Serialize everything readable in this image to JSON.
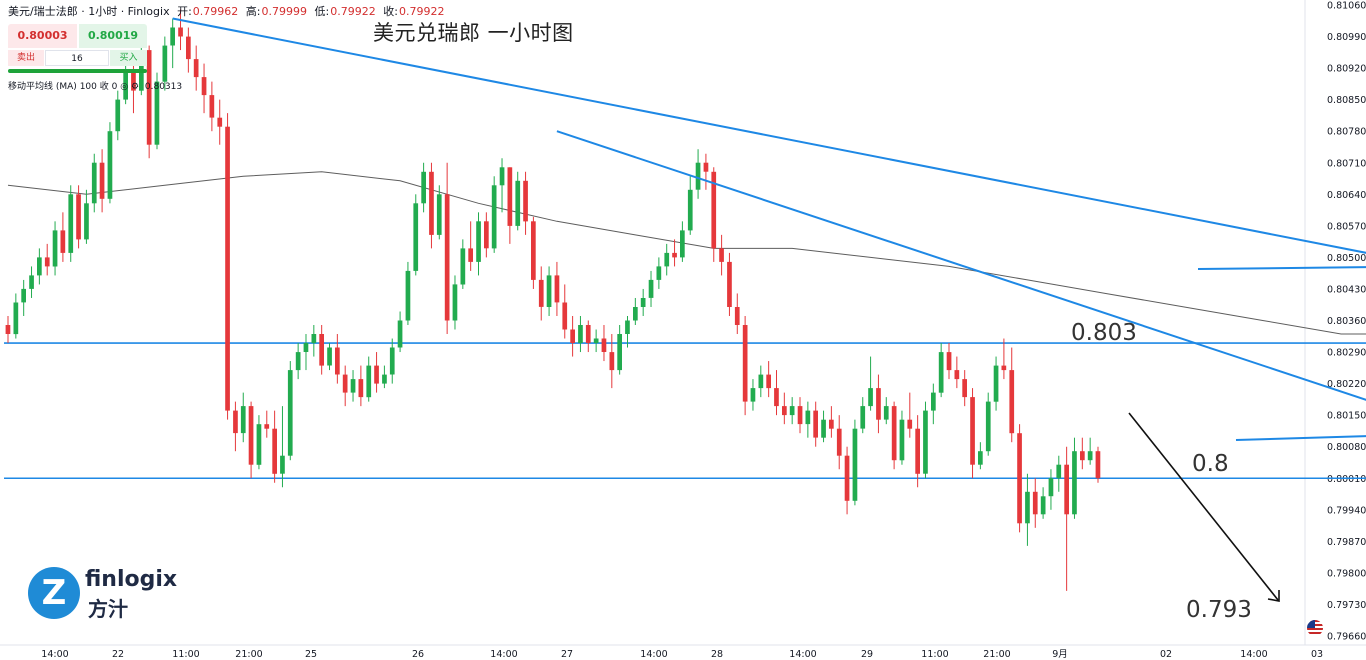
{
  "header": {
    "symbol_line": "美元/瑞士法郎 · 1小时 · Finlogix",
    "open_label": "开:",
    "open": "0.79962",
    "high_label": "高:",
    "high": "0.79999",
    "low_label": "低:",
    "low": "0.79922",
    "close_label": "收:",
    "close": "0.79922"
  },
  "trade": {
    "bid": "0.80003",
    "ask": "0.80019",
    "sell_label": "卖出",
    "buy_label": "买入",
    "quantity": "16"
  },
  "ma_legend": {
    "label": "移动平均线 (MA)",
    "params": "100 收 0",
    "value": "0.80313"
  },
  "annotations": {
    "title": "美元兑瑞郎 一小时图",
    "level_803": "0.803",
    "level_8": "0.8",
    "level_793": "0.793"
  },
  "logo": {
    "name": "finlogix",
    "mark_letter": "Z",
    "name_cn": "方汁"
  },
  "colors": {
    "up": "#22ab4f",
    "down": "#e5383b",
    "trendline": "#1e88e5",
    "ma": "#5d5d5d",
    "arrow": "#111111"
  },
  "chart_data": {
    "type": "candlestick",
    "instrument": "USD/CHF",
    "timeframe": "1H",
    "ylim": [
      0.7966,
      0.8106
    ],
    "price_ticks": [
      "0.81060",
      "0.80990",
      "0.80920",
      "0.80850",
      "0.80780",
      "0.80710",
      "0.80640",
      "0.80570",
      "0.80500",
      "0.80430",
      "0.80360",
      "0.80290",
      "0.80220",
      "0.80150",
      "0.80080",
      "0.80010",
      "0.79940",
      "0.79870",
      "0.79800",
      "0.79730",
      "0.79660"
    ],
    "time_ticks": [
      "14:00",
      "22",
      "11:00",
      "21:00",
      "25",
      "26",
      "14:00",
      "27",
      "14:00",
      "28",
      "14:00",
      "29",
      "11:00",
      "21:00",
      "9月",
      "02",
      "14:00",
      "03"
    ],
    "horizontal_levels": [
      0.8031,
      0.8001
    ],
    "moving_average_period": 100,
    "candles": [
      [
        0.8035,
        0.8037,
        0.8031,
        0.8033
      ],
      [
        0.8033,
        0.8042,
        0.8032,
        0.804
      ],
      [
        0.804,
        0.8045,
        0.8037,
        0.8043
      ],
      [
        0.8043,
        0.8048,
        0.8041,
        0.8046
      ],
      [
        0.8046,
        0.8052,
        0.8044,
        0.805
      ],
      [
        0.805,
        0.8053,
        0.8046,
        0.8048
      ],
      [
        0.8048,
        0.8058,
        0.8046,
        0.8056
      ],
      [
        0.8056,
        0.806,
        0.8049,
        0.8051
      ],
      [
        0.8051,
        0.8066,
        0.8049,
        0.8064
      ],
      [
        0.8064,
        0.8066,
        0.8052,
        0.8054
      ],
      [
        0.8054,
        0.8065,
        0.8053,
        0.8062
      ],
      [
        0.8062,
        0.8073,
        0.806,
        0.8071
      ],
      [
        0.8071,
        0.8074,
        0.806,
        0.8063
      ],
      [
        0.8063,
        0.808,
        0.8062,
        0.8078
      ],
      [
        0.8078,
        0.8087,
        0.8076,
        0.8085
      ],
      [
        0.8085,
        0.8093,
        0.8084,
        0.8091
      ],
      [
        0.8091,
        0.8095,
        0.8082,
        0.8087
      ],
      [
        0.8087,
        0.8098,
        0.8086,
        0.8096
      ],
      [
        0.8096,
        0.8097,
        0.8072,
        0.8075
      ],
      [
        0.8075,
        0.8091,
        0.8074,
        0.8089
      ],
      [
        0.8089,
        0.8099,
        0.8087,
        0.8097
      ],
      [
        0.8097,
        0.8103,
        0.8092,
        0.8101
      ],
      [
        0.8101,
        0.8105,
        0.8096,
        0.8099
      ],
      [
        0.8099,
        0.8101,
        0.8091,
        0.8094
      ],
      [
        0.8094,
        0.8097,
        0.8087,
        0.809
      ],
      [
        0.809,
        0.8093,
        0.8082,
        0.8086
      ],
      [
        0.8086,
        0.8089,
        0.8078,
        0.8081
      ],
      [
        0.8081,
        0.8085,
        0.8075,
        0.8079
      ],
      [
        0.8079,
        0.8082,
        0.8014,
        0.8016
      ],
      [
        0.8016,
        0.8018,
        0.8007,
        0.8011
      ],
      [
        0.8011,
        0.802,
        0.8009,
        0.8017
      ],
      [
        0.8017,
        0.8018,
        0.8001,
        0.8004
      ],
      [
        0.8004,
        0.8015,
        0.8003,
        0.8013
      ],
      [
        0.8013,
        0.8016,
        0.801,
        0.8012
      ],
      [
        0.8012,
        0.8016,
        0.8,
        0.8002
      ],
      [
        0.8002,
        0.8017,
        0.7999,
        0.8006
      ],
      [
        0.8006,
        0.8027,
        0.8005,
        0.8025
      ],
      [
        0.8025,
        0.8031,
        0.8023,
        0.8029
      ],
      [
        0.8029,
        0.8033,
        0.8025,
        0.8031
      ],
      [
        0.8031,
        0.8035,
        0.8028,
        0.8033
      ],
      [
        0.8033,
        0.8035,
        0.8024,
        0.8026
      ],
      [
        0.8026,
        0.8031,
        0.8025,
        0.803
      ],
      [
        0.803,
        0.8033,
        0.8022,
        0.8024
      ],
      [
        0.8024,
        0.8026,
        0.8017,
        0.802
      ],
      [
        0.802,
        0.8025,
        0.8018,
        0.8023
      ],
      [
        0.8023,
        0.8026,
        0.8017,
        0.8019
      ],
      [
        0.8019,
        0.8028,
        0.8018,
        0.8026
      ],
      [
        0.8026,
        0.8029,
        0.802,
        0.8022
      ],
      [
        0.8022,
        0.8026,
        0.8021,
        0.8024
      ],
      [
        0.8024,
        0.8032,
        0.8022,
        0.803
      ],
      [
        0.803,
        0.8038,
        0.8029,
        0.8036
      ],
      [
        0.8036,
        0.8049,
        0.8035,
        0.8047
      ],
      [
        0.8047,
        0.8064,
        0.8046,
        0.8062
      ],
      [
        0.8062,
        0.8071,
        0.806,
        0.8069
      ],
      [
        0.8069,
        0.8071,
        0.8052,
        0.8055
      ],
      [
        0.8055,
        0.8066,
        0.8054,
        0.8064
      ],
      [
        0.8064,
        0.8071,
        0.8033,
        0.8036
      ],
      [
        0.8036,
        0.8046,
        0.8034,
        0.8044
      ],
      [
        0.8044,
        0.8054,
        0.8043,
        0.8052
      ],
      [
        0.8052,
        0.8058,
        0.8047,
        0.8049
      ],
      [
        0.8049,
        0.806,
        0.8046,
        0.8058
      ],
      [
        0.8058,
        0.806,
        0.805,
        0.8052
      ],
      [
        0.8052,
        0.8068,
        0.8051,
        0.8066
      ],
      [
        0.8066,
        0.8072,
        0.806,
        0.807
      ],
      [
        0.807,
        0.807,
        0.8053,
        0.8057
      ],
      [
        0.8057,
        0.8069,
        0.8056,
        0.8067
      ],
      [
        0.8067,
        0.8069,
        0.8055,
        0.8058
      ],
      [
        0.8058,
        0.8059,
        0.8043,
        0.8045
      ],
      [
        0.8045,
        0.8048,
        0.8036,
        0.8039
      ],
      [
        0.8039,
        0.8048,
        0.8037,
        0.8046
      ],
      [
        0.8046,
        0.8049,
        0.8037,
        0.804
      ],
      [
        0.804,
        0.8044,
        0.8032,
        0.8034
      ],
      [
        0.8034,
        0.8037,
        0.8028,
        0.8031
      ],
      [
        0.8031,
        0.8037,
        0.8029,
        0.8035
      ],
      [
        0.8035,
        0.8036,
        0.8029,
        0.8031
      ],
      [
        0.8031,
        0.8034,
        0.8029,
        0.8032
      ],
      [
        0.8032,
        0.8035,
        0.8027,
        0.8029
      ],
      [
        0.8029,
        0.8033,
        0.8021,
        0.8025
      ],
      [
        0.8025,
        0.8035,
        0.8024,
        0.8033
      ],
      [
        0.8033,
        0.8037,
        0.803,
        0.8036
      ],
      [
        0.8036,
        0.8041,
        0.8035,
        0.8039
      ],
      [
        0.8039,
        0.8043,
        0.8037,
        0.8041
      ],
      [
        0.8041,
        0.8047,
        0.8039,
        0.8045
      ],
      [
        0.8045,
        0.805,
        0.8043,
        0.8048
      ],
      [
        0.8048,
        0.8053,
        0.8046,
        0.8051
      ],
      [
        0.8051,
        0.8054,
        0.8048,
        0.805
      ],
      [
        0.805,
        0.8058,
        0.8049,
        0.8056
      ],
      [
        0.8056,
        0.8068,
        0.8055,
        0.8065
      ],
      [
        0.8065,
        0.8074,
        0.8063,
        0.8071
      ],
      [
        0.8071,
        0.8073,
        0.8065,
        0.8069
      ],
      [
        0.8069,
        0.807,
        0.8049,
        0.8052
      ],
      [
        0.8052,
        0.8055,
        0.8046,
        0.8049
      ],
      [
        0.8049,
        0.8051,
        0.8037,
        0.8039
      ],
      [
        0.8039,
        0.8042,
        0.8033,
        0.8035
      ],
      [
        0.8035,
        0.8037,
        0.8015,
        0.8018
      ],
      [
        0.8018,
        0.8023,
        0.8016,
        0.8021
      ],
      [
        0.8021,
        0.8026,
        0.8019,
        0.8024
      ],
      [
        0.8024,
        0.8027,
        0.8019,
        0.8021
      ],
      [
        0.8021,
        0.8025,
        0.8015,
        0.8017
      ],
      [
        0.8017,
        0.802,
        0.8013,
        0.8015
      ],
      [
        0.8015,
        0.8019,
        0.8013,
        0.8017
      ],
      [
        0.8017,
        0.8019,
        0.8011,
        0.8013
      ],
      [
        0.8013,
        0.8018,
        0.801,
        0.8016
      ],
      [
        0.8016,
        0.8018,
        0.8008,
        0.801
      ],
      [
        0.801,
        0.8016,
        0.8009,
        0.8014
      ],
      [
        0.8014,
        0.8017,
        0.801,
        0.8012
      ],
      [
        0.8012,
        0.8015,
        0.8003,
        0.8006
      ],
      [
        0.8006,
        0.8008,
        0.7993,
        0.7996
      ],
      [
        0.7996,
        0.8014,
        0.7995,
        0.8012
      ],
      [
        0.8012,
        0.8019,
        0.8011,
        0.8017
      ],
      [
        0.8017,
        0.8028,
        0.8016,
        0.8021
      ],
      [
        0.8021,
        0.8024,
        0.8011,
        0.8014
      ],
      [
        0.8014,
        0.8019,
        0.8013,
        0.8017
      ],
      [
        0.8017,
        0.8018,
        0.8003,
        0.8005
      ],
      [
        0.8005,
        0.8016,
        0.8004,
        0.8014
      ],
      [
        0.8014,
        0.802,
        0.801,
        0.8012
      ],
      [
        0.8012,
        0.8015,
        0.7999,
        0.8002
      ],
      [
        0.8002,
        0.8018,
        0.8001,
        0.8016
      ],
      [
        0.8016,
        0.8022,
        0.8013,
        0.802
      ],
      [
        0.802,
        0.8031,
        0.8019,
        0.8029
      ],
      [
        0.8029,
        0.8031,
        0.8023,
        0.8025
      ],
      [
        0.8025,
        0.8028,
        0.8021,
        0.8023
      ],
      [
        0.8023,
        0.8025,
        0.8017,
        0.8019
      ],
      [
        0.8019,
        0.8021,
        0.8001,
        0.8004
      ],
      [
        0.8004,
        0.8009,
        0.8003,
        0.8007
      ],
      [
        0.8007,
        0.802,
        0.8006,
        0.8018
      ],
      [
        0.8018,
        0.8028,
        0.8016,
        0.8026
      ],
      [
        0.8026,
        0.8032,
        0.8023,
        0.8025
      ],
      [
        0.8025,
        0.803,
        0.8009,
        0.8011
      ],
      [
        0.8011,
        0.8013,
        0.7989,
        0.7991
      ],
      [
        0.7991,
        0.8002,
        0.7986,
        0.7998
      ],
      [
        0.7998,
        0.8001,
        0.799,
        0.7993
      ],
      [
        0.7993,
        0.7999,
        0.7992,
        0.7997
      ],
      [
        0.7997,
        0.8003,
        0.7994,
        0.8001
      ],
      [
        0.8001,
        0.8006,
        0.7998,
        0.8004
      ],
      [
        0.8004,
        0.8008,
        0.7976,
        0.7993
      ],
      [
        0.7993,
        0.801,
        0.7992,
        0.8007
      ],
      [
        0.8007,
        0.801,
        0.8003,
        0.8005
      ],
      [
        0.8005,
        0.801,
        0.8004,
        0.8007
      ],
      [
        0.8007,
        0.8008,
        0.8,
        0.8001
      ]
    ],
    "ma_points": [
      [
        0,
        0.8066
      ],
      [
        10,
        0.8064
      ],
      [
        20,
        0.8066
      ],
      [
        30,
        0.8068
      ],
      [
        40,
        0.8069
      ],
      [
        50,
        0.8067
      ],
      [
        60,
        0.8062
      ],
      [
        70,
        0.8058
      ],
      [
        80,
        0.8055
      ],
      [
        90,
        0.8052
      ],
      [
        100,
        0.8052
      ],
      [
        110,
        0.805
      ],
      [
        120,
        0.8048
      ],
      [
        130,
        0.8045
      ],
      [
        140,
        0.8042
      ],
      [
        150,
        0.8039
      ],
      [
        160,
        0.8036
      ],
      [
        170,
        0.8033
      ],
      [
        180,
        0.8033
      ],
      [
        190,
        0.8031
      ],
      [
        200,
        0.803
      ],
      [
        205,
        0.8027
      ]
    ],
    "trendlines": [
      {
        "from": [
          21,
          0.8103
        ],
        "to": [
          182,
          0.8048
        ]
      },
      {
        "from": [
          70,
          0.8078
        ],
        "to": [
          186,
          0.8011
        ]
      },
      {
        "from": [
          0,
          0.8031
        ],
        "to": [
          199,
          0.8031
        ]
      },
      {
        "from": [
          0,
          0.8001
        ],
        "to": [
          199,
          0.8001
        ]
      }
    ]
  }
}
